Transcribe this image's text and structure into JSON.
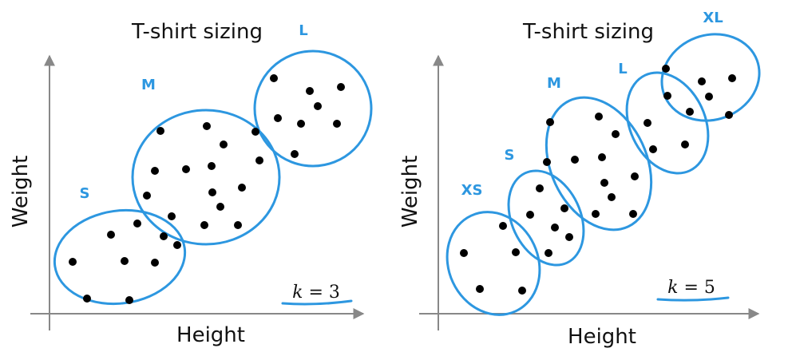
{
  "colors": {
    "cluster": "#2d97e0",
    "axis": "#888888",
    "point": "#000000",
    "text": "#111111"
  },
  "panels": [
    {
      "title": "T-shirt sizing",
      "xlabel": "Height",
      "ylabel": "Weight",
      "k_var": "k",
      "k_rest": " = 3",
      "clusters": [
        {
          "label": "S"
        },
        {
          "label": "M"
        },
        {
          "label": "L"
        }
      ]
    },
    {
      "title": "T-shirt sizing",
      "xlabel": "Height",
      "ylabel": "Weight",
      "k_var": "k",
      "k_rest": " = 5",
      "clusters": [
        {
          "label": "XS"
        },
        {
          "label": "S"
        },
        {
          "label": "M"
        },
        {
          "label": "L"
        },
        {
          "label": "XL"
        }
      ]
    }
  ]
}
